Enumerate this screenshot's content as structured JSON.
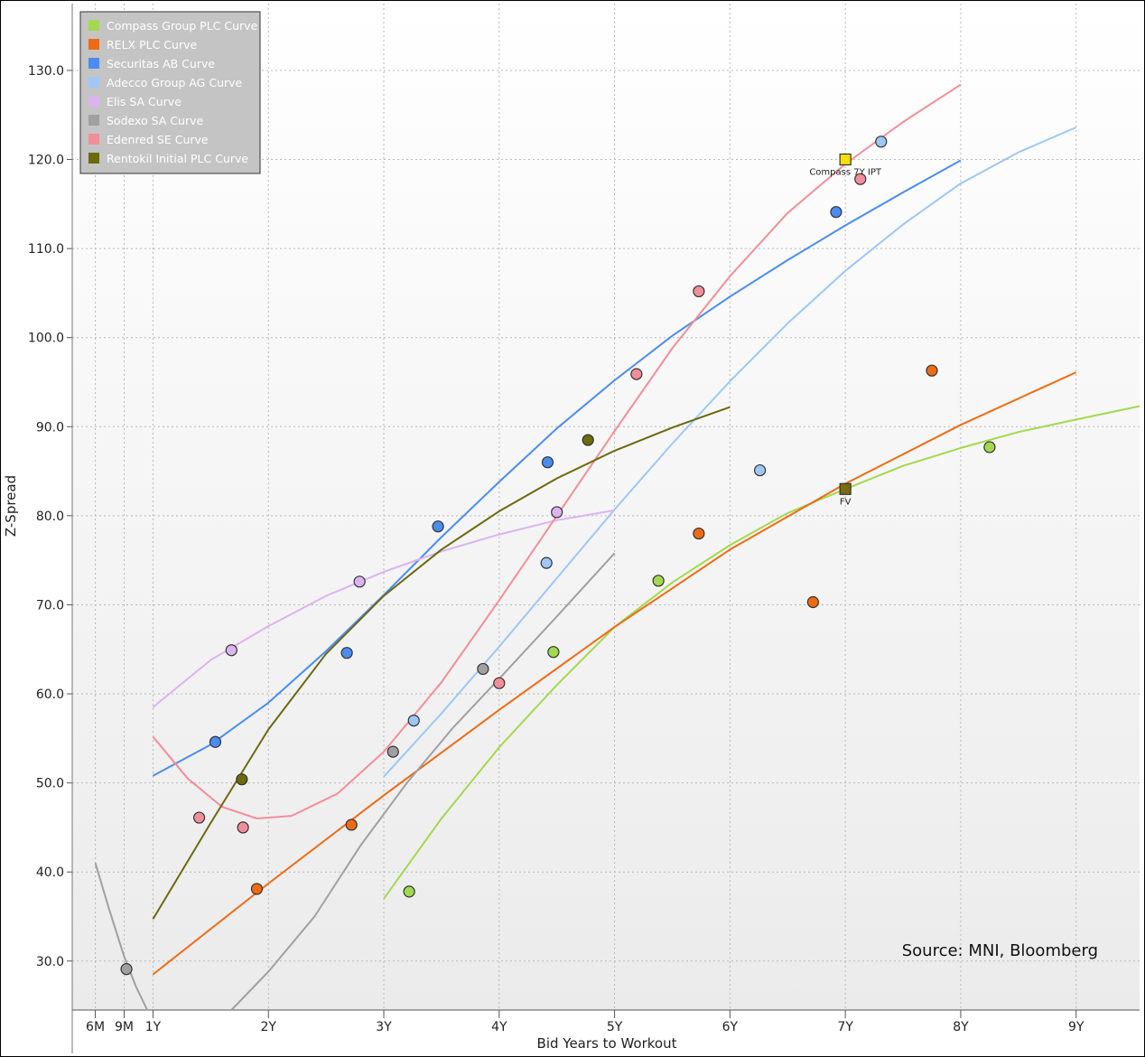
{
  "chart_data": {
    "type": "scatter",
    "title": "",
    "xlabel": "Bid Years to Workout",
    "ylabel": "Z-Spread",
    "xlim": [
      0.3,
      9.55
    ],
    "ylim": [
      24.5,
      137.5
    ],
    "x_ticks": [
      {
        "value": 0.5,
        "label": "6M"
      },
      {
        "value": 0.75,
        "label": "9M"
      },
      {
        "value": 1,
        "label": "1Y"
      },
      {
        "value": 2,
        "label": "2Y"
      },
      {
        "value": 3,
        "label": "3Y"
      },
      {
        "value": 4,
        "label": "4Y"
      },
      {
        "value": 5,
        "label": "5Y"
      },
      {
        "value": 6,
        "label": "6Y"
      },
      {
        "value": 7,
        "label": "7Y"
      },
      {
        "value": 8,
        "label": "8Y"
      },
      {
        "value": 9,
        "label": "9Y"
      }
    ],
    "y_ticks": [
      {
        "value": 30,
        "label": "30.0"
      },
      {
        "value": 40,
        "label": "40.0"
      },
      {
        "value": 50,
        "label": "50.0"
      },
      {
        "value": 60,
        "label": "60.0"
      },
      {
        "value": 70,
        "label": "70.0"
      },
      {
        "value": 80,
        "label": "80.0"
      },
      {
        "value": 90,
        "label": "90.0"
      },
      {
        "value": 100,
        "label": "100.0"
      },
      {
        "value": 110,
        "label": "110.0"
      },
      {
        "value": 120,
        "label": "120.0"
      },
      {
        "value": 130,
        "label": "130.0"
      }
    ],
    "grid": true,
    "legend_position": "top-left",
    "series": [
      {
        "name": "Compass Group PLC Curve",
        "color": "#a3d94e",
        "points": [
          [
            3.22,
            37.8
          ],
          [
            4.47,
            64.7
          ],
          [
            5.38,
            72.7
          ],
          [
            8.25,
            87.7
          ]
        ],
        "curve": [
          [
            3.0,
            37.0
          ],
          [
            3.5,
            46.0
          ],
          [
            4.0,
            54.0
          ],
          [
            4.5,
            61.0
          ],
          [
            5.0,
            67.5
          ],
          [
            5.5,
            72.5
          ],
          [
            6.0,
            76.7
          ],
          [
            6.5,
            80.3
          ],
          [
            7.0,
            83.0
          ],
          [
            7.5,
            85.6
          ],
          [
            8.0,
            87.6
          ],
          [
            8.5,
            89.4
          ],
          [
            9.0,
            90.8
          ],
          [
            9.55,
            92.3
          ]
        ]
      },
      {
        "name": "RELX PLC Curve",
        "color": "#ee6b13",
        "points": [
          [
            1.9,
            38.1
          ],
          [
            2.72,
            45.3
          ],
          [
            5.73,
            78.0
          ],
          [
            6.72,
            70.3
          ],
          [
            7.75,
            96.3
          ]
        ],
        "curve": [
          [
            1.0,
            28.5
          ],
          [
            2.0,
            38.7
          ],
          [
            3.0,
            48.6
          ],
          [
            4.0,
            58.2
          ],
          [
            5.0,
            67.5
          ],
          [
            6.0,
            76.2
          ],
          [
            7.0,
            83.6
          ],
          [
            8.0,
            90.2
          ],
          [
            9.0,
            96.1
          ]
        ]
      },
      {
        "name": "Securitas AB Curve",
        "color": "#4a8cf0",
        "points": [
          [
            1.54,
            54.6
          ],
          [
            2.68,
            64.6
          ],
          [
            3.47,
            78.8
          ],
          [
            4.42,
            86.0
          ],
          [
            6.92,
            114.1
          ]
        ],
        "curve": [
          [
            1.0,
            50.8
          ],
          [
            1.5,
            54.3
          ],
          [
            2.0,
            59.0
          ],
          [
            2.5,
            64.8
          ],
          [
            3.0,
            71.1
          ],
          [
            3.5,
            77.6
          ],
          [
            4.0,
            83.8
          ],
          [
            4.5,
            89.8
          ],
          [
            5.0,
            95.2
          ],
          [
            5.5,
            100.2
          ],
          [
            6.0,
            104.6
          ],
          [
            6.5,
            108.7
          ],
          [
            7.0,
            112.6
          ],
          [
            7.5,
            116.3
          ],
          [
            8.0,
            119.9
          ]
        ]
      },
      {
        "name": "Adecco Group AG Curve",
        "color": "#9ec7f5",
        "points": [
          [
            3.26,
            57.0
          ],
          [
            4.41,
            74.7
          ],
          [
            6.26,
            85.1
          ],
          [
            7.31,
            122.0
          ]
        ],
        "curve": [
          [
            3.0,
            50.7
          ],
          [
            3.5,
            57.8
          ],
          [
            4.0,
            65.3
          ],
          [
            4.5,
            73.0
          ],
          [
            5.0,
            80.7
          ],
          [
            5.5,
            88.1
          ],
          [
            6.0,
            95.1
          ],
          [
            6.5,
            101.6
          ],
          [
            7.0,
            107.5
          ],
          [
            7.5,
            112.7
          ],
          [
            8.0,
            117.3
          ],
          [
            8.5,
            120.8
          ],
          [
            9.0,
            123.6
          ]
        ]
      },
      {
        "name": "Elis SA Curve",
        "color": "#dcb3f0",
        "points": [
          [
            1.68,
            64.9
          ],
          [
            2.79,
            72.6
          ],
          [
            4.5,
            80.4
          ]
        ],
        "curve": [
          [
            1.0,
            58.5
          ],
          [
            1.5,
            63.8
          ],
          [
            2.0,
            67.6
          ],
          [
            2.5,
            71.0
          ],
          [
            3.0,
            73.7
          ],
          [
            3.5,
            76.0
          ],
          [
            4.0,
            77.9
          ],
          [
            4.5,
            79.5
          ],
          [
            5.0,
            80.6
          ]
        ]
      },
      {
        "name": "Sodexo SA Curve",
        "color": "#a0a0a0",
        "points": [
          [
            0.77,
            29.1
          ],
          [
            3.08,
            53.5
          ],
          [
            3.86,
            62.8
          ]
        ],
        "curve": [
          [
            0.5,
            41.0
          ],
          [
            0.62,
            35.8
          ],
          [
            0.75,
            30.5
          ],
          [
            0.85,
            27.2
          ],
          [
            0.95,
            24.5
          ]
        ],
        "curve2": [
          [
            1.68,
            24.5
          ],
          [
            2.0,
            28.8
          ],
          [
            2.4,
            35.0
          ],
          [
            2.8,
            43.0
          ],
          [
            3.2,
            50.0
          ],
          [
            3.6,
            56.2
          ],
          [
            4.0,
            61.7
          ],
          [
            4.5,
            68.7
          ],
          [
            5.0,
            75.8
          ]
        ]
      },
      {
        "name": "Edenred SE Curve",
        "color": "#f28e99",
        "points": [
          [
            1.4,
            46.1
          ],
          [
            1.78,
            45.0
          ],
          [
            4.0,
            61.2
          ],
          [
            5.19,
            95.9
          ],
          [
            5.73,
            105.2
          ],
          [
            7.13,
            117.8
          ]
        ],
        "curve": [
          [
            1.0,
            55.2
          ],
          [
            1.3,
            50.5
          ],
          [
            1.6,
            47.3
          ],
          [
            1.9,
            46.0
          ],
          [
            2.2,
            46.3
          ],
          [
            2.6,
            48.8
          ],
          [
            3.0,
            53.5
          ],
          [
            3.5,
            61.3
          ],
          [
            4.0,
            70.5
          ],
          [
            4.5,
            80.0
          ],
          [
            5.0,
            89.5
          ],
          [
            5.5,
            98.8
          ],
          [
            6.0,
            106.9
          ],
          [
            6.5,
            114.0
          ],
          [
            7.0,
            119.5
          ],
          [
            7.5,
            124.2
          ],
          [
            8.0,
            128.4
          ]
        ]
      },
      {
        "name": "Rentokil Initial PLC Curve",
        "color": "#6b6a0f",
        "points": [
          [
            1.77,
            50.4
          ],
          [
            4.77,
            88.5
          ]
        ],
        "curve": [
          [
            1.0,
            34.7
          ],
          [
            1.5,
            45.5
          ],
          [
            2.0,
            56.0
          ],
          [
            2.5,
            64.5
          ],
          [
            3.0,
            71.0
          ],
          [
            3.5,
            76.2
          ],
          [
            4.0,
            80.5
          ],
          [
            4.5,
            84.2
          ],
          [
            5.0,
            87.3
          ],
          [
            5.5,
            89.9
          ],
          [
            6.0,
            92.2
          ]
        ]
      }
    ],
    "annotations": [
      {
        "label": "Compass 7Y IPT",
        "x": 7.0,
        "y": 120.0,
        "marker": "square",
        "color": "#f5e000"
      },
      {
        "label": "FV",
        "x": 7.0,
        "y": 83.0,
        "marker": "square",
        "color": "#7a6a10"
      }
    ]
  },
  "source_note": "Source: MNI, Bloomberg"
}
